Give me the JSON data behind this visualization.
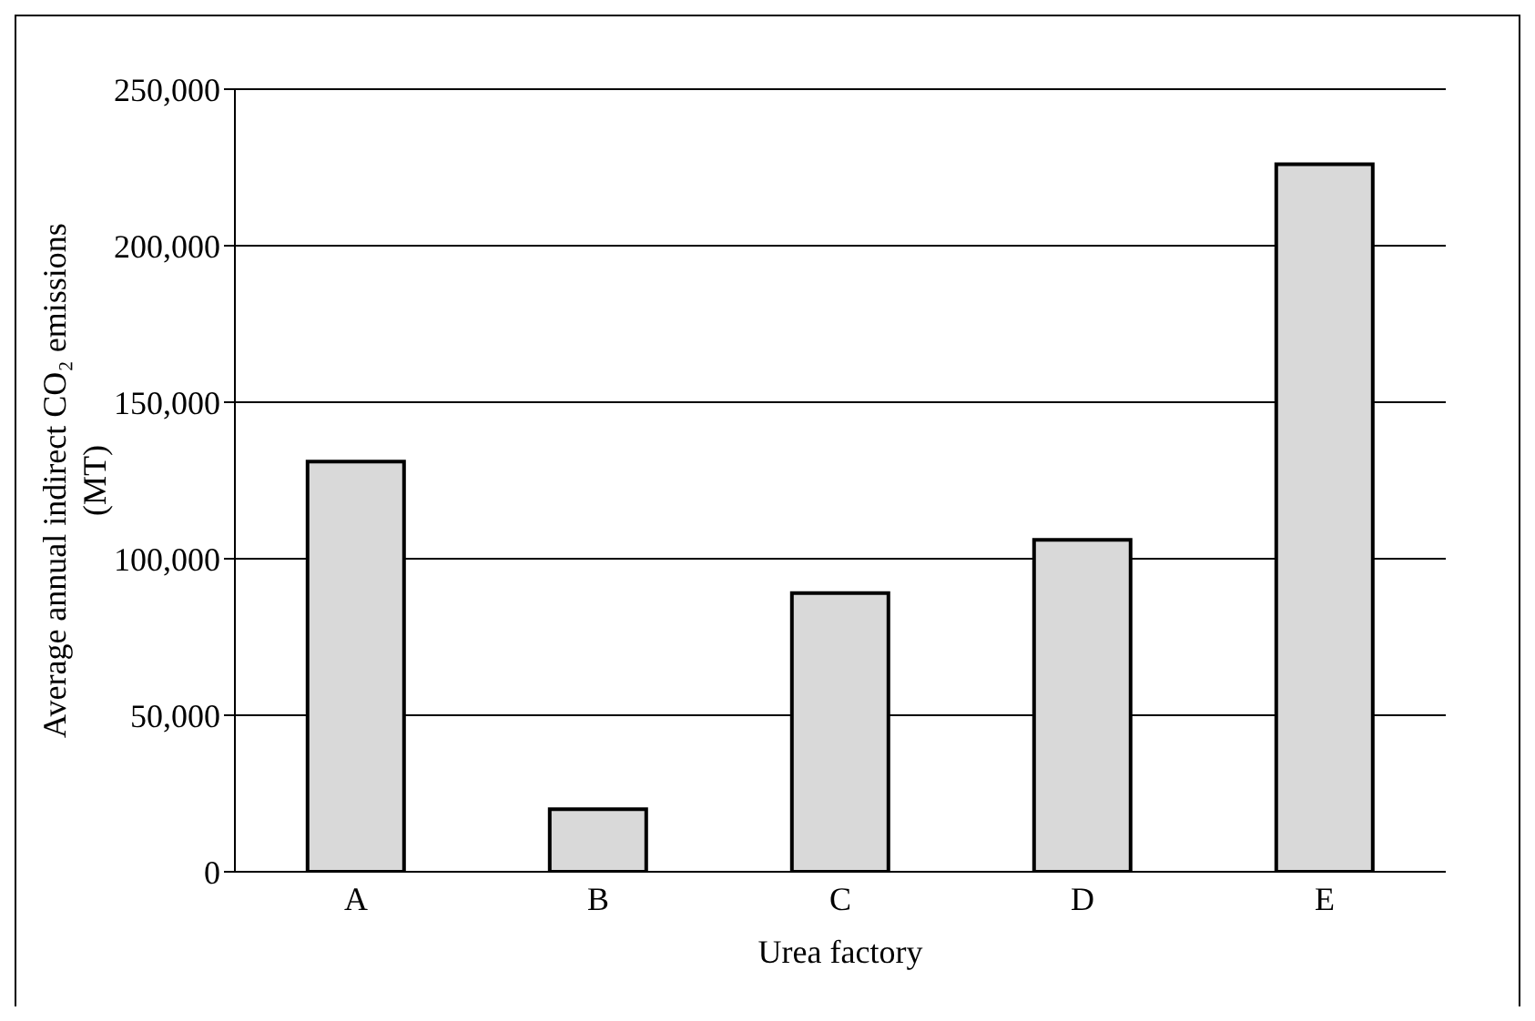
{
  "chart_data": {
    "type": "bar",
    "xlabel": "Urea factory",
    "ylabel": "Average annual indirect CO₂ emissions (MT)",
    "categories": [
      "A",
      "B",
      "C",
      "D",
      "E"
    ],
    "values": [
      131000,
      20000,
      89000,
      106000,
      226000
    ],
    "color": "#d9d9d9",
    "ylim": [
      0,
      250000
    ],
    "yticks": [
      {
        "value": 0,
        "label": "0"
      },
      {
        "value": 50000,
        "label": "50,000"
      },
      {
        "value": 100000,
        "label": "100,000"
      },
      {
        "value": 150000,
        "label": "150,000"
      },
      {
        "value": 200000,
        "label": "200,000"
      },
      {
        "value": 250000,
        "label": "250,000"
      }
    ],
    "grid": "y",
    "legend": false
  }
}
